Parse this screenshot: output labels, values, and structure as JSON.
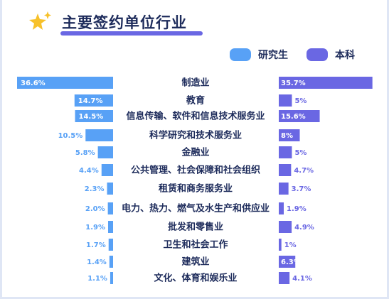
{
  "header": {
    "title": "主要签约单位行业",
    "icon": "sparkle-star-icon"
  },
  "colors": {
    "graduate": "#58a1f6",
    "undergraduate": "#6a67e3",
    "text": "#1d2b5b",
    "star": "#f7c12a"
  },
  "chart_data": {
    "type": "bar",
    "orientation": "horizontal-butterfly",
    "title": "主要签约单位行业",
    "legend_position": "top-right",
    "categories": [
      "制造业",
      "教育",
      "信息传输、软件和信息技术服务业",
      "科学研究和技术服务业",
      "金融业",
      "公共管理、社会保障和社会组织",
      "租赁和商务服务业",
      "电力、热力、燃气及水生产和供应业",
      "批发和零售业",
      "卫生和社会工作",
      "建筑业",
      "文化、体育和娱乐业"
    ],
    "series": [
      {
        "name": "研究生",
        "values": [
          36.6,
          14.7,
          14.5,
          10.5,
          5.8,
          4.4,
          2.3,
          2.0,
          1.9,
          1.7,
          1.4,
          1.1
        ],
        "labels": [
          "36.6%",
          "14.7%",
          "14.5%",
          "10.5%",
          "5.8%",
          "4.4%",
          "2.3%",
          "2.0%",
          "1.9%",
          "1.7%",
          "1.4%",
          "1.1%"
        ]
      },
      {
        "name": "本科",
        "values": [
          35.7,
          5,
          15.6,
          8,
          5,
          4.7,
          3.7,
          1.9,
          4.9,
          1,
          6.3,
          4.1
        ],
        "labels": [
          "35.7%",
          "5%",
          "15.6%",
          "8%",
          "5%",
          "4.7%",
          "3.7%",
          "1.9%",
          "4.9%",
          "1%",
          "6.3%",
          "4.1%"
        ]
      }
    ],
    "unit": "%"
  }
}
